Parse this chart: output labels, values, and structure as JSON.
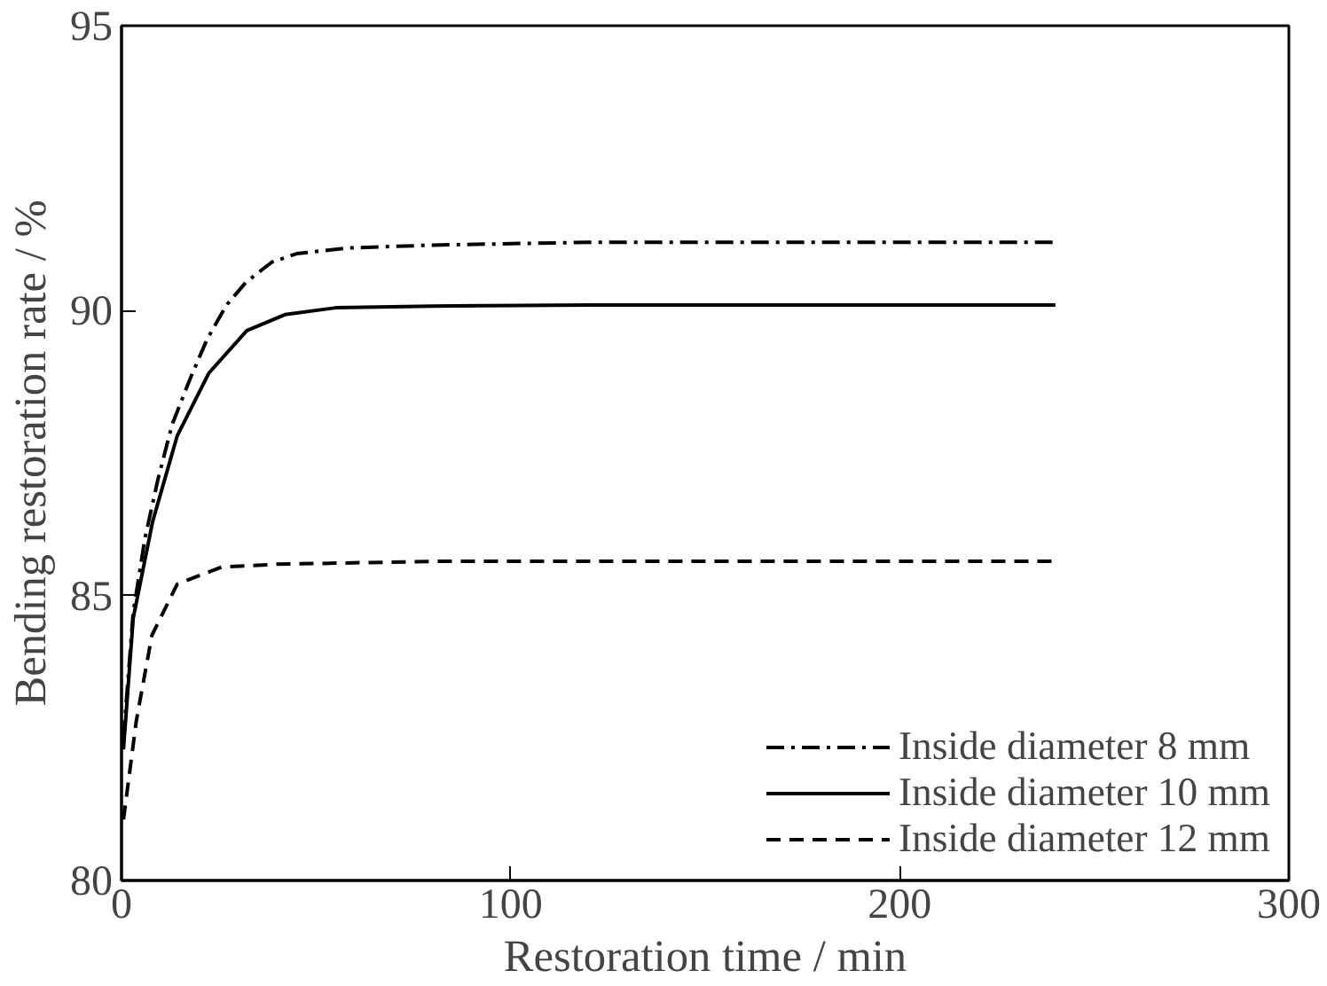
{
  "chart_data": {
    "type": "line",
    "xlabel": "Restoration time / min",
    "ylabel": "Bending restoration rate / %",
    "xlim": [
      0,
      300
    ],
    "ylim": [
      80,
      95
    ],
    "xticks": [
      0,
      100,
      200,
      300
    ],
    "yticks": [
      80,
      85,
      90,
      95
    ],
    "grid": false,
    "legend": "bottom right",
    "marker": "none",
    "series": [
      {
        "name": "Inside diameter 8 mm",
        "color": "#000000",
        "line_style": "dashdot",
        "x": [
          0.5,
          3,
          6,
          9.4,
          13,
          17.6,
          22,
          27,
          32,
          38.6,
          45,
          58,
          80,
          120,
          160,
          200,
          240
        ],
        "values": [
          82.5,
          84.7,
          86.0,
          87.05,
          88.0,
          88.8,
          89.5,
          90.1,
          90.5,
          90.85,
          91.0,
          91.1,
          91.15,
          91.2,
          91.2,
          91.2,
          91.2
        ]
      },
      {
        "name": "Inside diameter 10 mm",
        "color": "#000000",
        "line_style": "solid",
        "x": [
          0.5,
          3,
          8,
          14.3,
          22.4,
          32.2,
          42,
          55,
          80,
          120,
          160,
          200,
          240
        ],
        "values": [
          82.3,
          84.6,
          86.3,
          87.8,
          88.9,
          89.65,
          89.93,
          90.05,
          90.08,
          90.1,
          90.1,
          90.1,
          90.1
        ]
      },
      {
        "name": "Inside diameter 12 mm",
        "color": "#000000",
        "line_style": "dashed",
        "x": [
          0.5,
          3.8,
          7.8,
          14.3,
          25.7,
          40,
          80,
          120,
          160,
          200,
          240
        ],
        "values": [
          81.07,
          82.8,
          84.3,
          85.2,
          85.5,
          85.55,
          85.6,
          85.6,
          85.6,
          85.6,
          85.6
        ]
      }
    ]
  }
}
